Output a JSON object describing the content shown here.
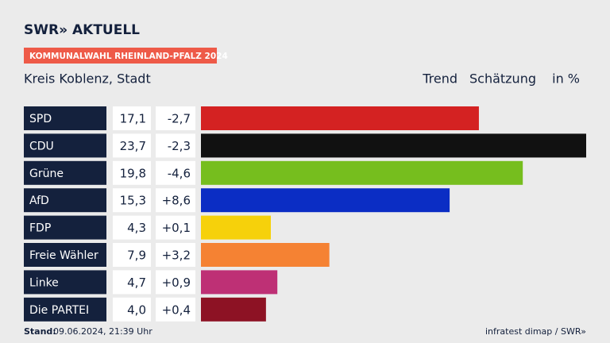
{
  "header": {
    "logo": "SWR» AKTUELL",
    "badge": "KOMMUNALWAHL RHEINLAND-PFALZ 2024",
    "region": "Kreis Koblenz, Stadt",
    "columns": [
      "Trend",
      "Schätzung",
      "in %"
    ]
  },
  "chart_data": {
    "type": "bar",
    "categories": [
      "SPD",
      "CDU",
      "Grüne",
      "AfD",
      "FDP",
      "Freie Wähler",
      "Linke",
      "Die PARTEI"
    ],
    "values": [
      17.1,
      23.7,
      19.8,
      15.3,
      4.3,
      7.9,
      4.7,
      4.0
    ],
    "value_labels": [
      "17,1",
      "23,7",
      "19,8",
      "15,3",
      "4,3",
      "7,9",
      "4,7",
      "4,0"
    ],
    "changes": [
      -2.7,
      -2.3,
      -4.6,
      8.6,
      0.1,
      3.2,
      0.9,
      0.4
    ],
    "change_labels": [
      "-2,7",
      "-2,3",
      "-4,6",
      "+8,6",
      "+0,1",
      "+3,2",
      "+0,9",
      "+0,4"
    ],
    "colors": [
      "#d42222",
      "#111111",
      "#76be1e",
      "#0b2dc4",
      "#f6d10b",
      "#f58233",
      "#be3075",
      "#8d1224"
    ]
  },
  "footer": {
    "stand_label": "Stand:",
    "stand": "09.06.2024, 21:39 Uhr",
    "source": "infratest dimap / SWR»"
  }
}
